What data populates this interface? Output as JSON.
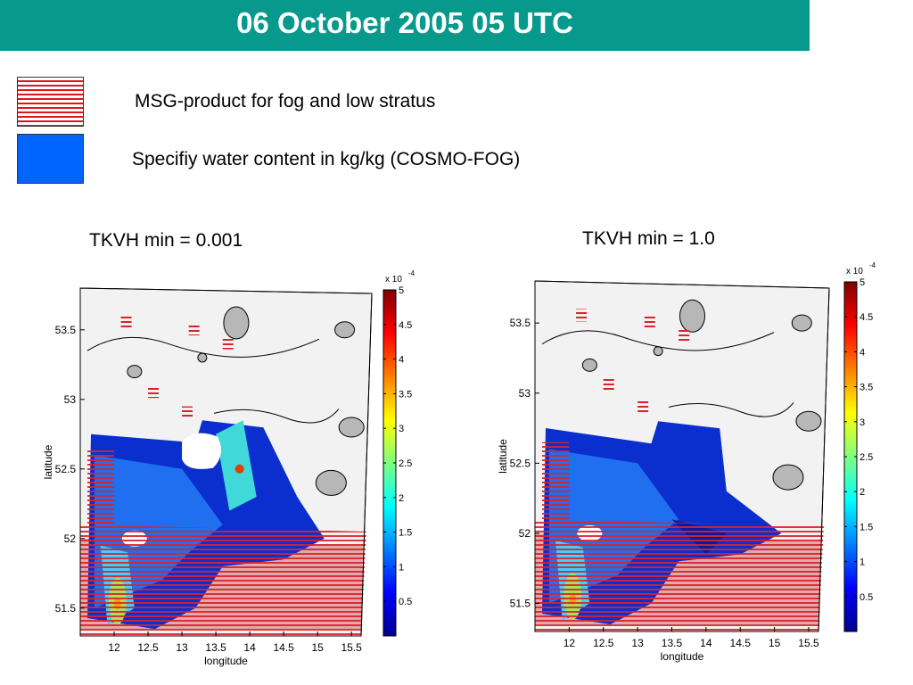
{
  "header": {
    "title": "06 October 2005 05 UTC",
    "background_color": "#079a8c",
    "text_color": "#ffffff"
  },
  "legend": [
    {
      "label": "MSG-product for fog and low stratus",
      "pattern": "red-horizontal-stripes",
      "color": "#e0141b"
    },
    {
      "label": "Specifiy water content in kg/kg (COSMO-FOG)",
      "pattern": "solid",
      "color": "#0064ff"
    }
  ],
  "panels": [
    {
      "title": "TKVH min = 0.001"
    },
    {
      "title": "TKVH min = 1.0"
    }
  ],
  "chart_data": [
    {
      "type": "heatmap",
      "title": "TKVH min = 0.001",
      "xlabel": "longitude",
      "ylabel": "latitude",
      "x_ticks": [
        "12",
        "12.5",
        "13",
        "13.5",
        "14",
        "14.5",
        "15",
        "15.5"
      ],
      "y_ticks": [
        "51.5",
        "52",
        "52.5",
        "53",
        "53.5"
      ],
      "colorbar": {
        "ticks": [
          "0.5",
          "1",
          "1.5",
          "2",
          "2.5",
          "3",
          "3.5",
          "4",
          "4.5",
          "5"
        ],
        "exponent_label": "x 10",
        "exponent": "-4",
        "range": [
          0,
          5
        ]
      }
    },
    {
      "type": "heatmap",
      "title": "TKVH min = 1.0",
      "xlabel": "longitude",
      "ylabel": "latitude",
      "x_ticks": [
        "12",
        "12.5",
        "13",
        "13.5",
        "14",
        "14.5",
        "15",
        "15.5"
      ],
      "y_ticks": [
        "51.5",
        "52",
        "52.5",
        "53",
        "53.5"
      ],
      "colorbar": {
        "ticks": [
          "0.5",
          "1",
          "1.5",
          "2",
          "2.5",
          "3",
          "3.5",
          "4",
          "4.5",
          "5"
        ],
        "exponent_label": "x 10",
        "exponent": "-4",
        "range": [
          0,
          5
        ]
      }
    }
  ]
}
